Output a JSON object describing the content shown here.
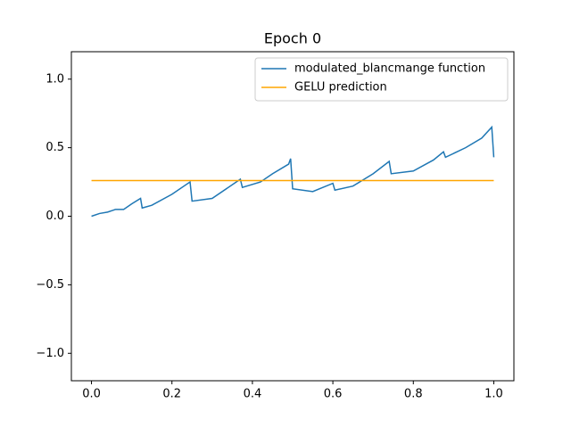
{
  "chart_data": {
    "type": "line",
    "title": "Epoch 0",
    "series": [
      {
        "name": "modulated_blancmange function",
        "color": "#1f77b4",
        "x": [
          0,
          0.02,
          0.04,
          0.06,
          0.08,
          0.1,
          0.122,
          0.126,
          0.15,
          0.2,
          0.245,
          0.25,
          0.3,
          0.37,
          0.375,
          0.42,
          0.45,
          0.49,
          0.495,
          0.5,
          0.55,
          0.6,
          0.605,
          0.65,
          0.7,
          0.74,
          0.745,
          0.8,
          0.85,
          0.875,
          0.88,
          0.93,
          0.97,
          0.995,
          1.0
        ],
        "values": [
          0,
          0.02,
          0.03,
          0.05,
          0.05,
          0.09,
          0.13,
          0.06,
          0.08,
          0.16,
          0.25,
          0.11,
          0.13,
          0.27,
          0.21,
          0.25,
          0.31,
          0.38,
          0.42,
          0.2,
          0.18,
          0.24,
          0.19,
          0.22,
          0.31,
          0.4,
          0.31,
          0.33,
          0.41,
          0.47,
          0.43,
          0.5,
          0.57,
          0.65,
          0.43
        ]
      },
      {
        "name": "GELU prediction",
        "color": "#ffa500",
        "x": [
          0,
          1
        ],
        "values": [
          0.26,
          0.26
        ]
      }
    ],
    "xlim": [
      -0.05,
      1.05
    ],
    "ylim": [
      -1.2,
      1.2
    ],
    "xticks": [
      {
        "value": 0,
        "label": "0.0"
      },
      0.2,
      0.4,
      0.6,
      0.8,
      {
        "value": 1,
        "label": "1.0"
      }
    ],
    "yticks": [
      {
        "value": -1,
        "label": "−1.0"
      },
      {
        "value": -0.5,
        "label": "−0.5"
      },
      {
        "value": 0,
        "label": "0.0"
      },
      0.5,
      {
        "value": 1,
        "label": "1.0"
      }
    ],
    "legend": "upper right"
  }
}
